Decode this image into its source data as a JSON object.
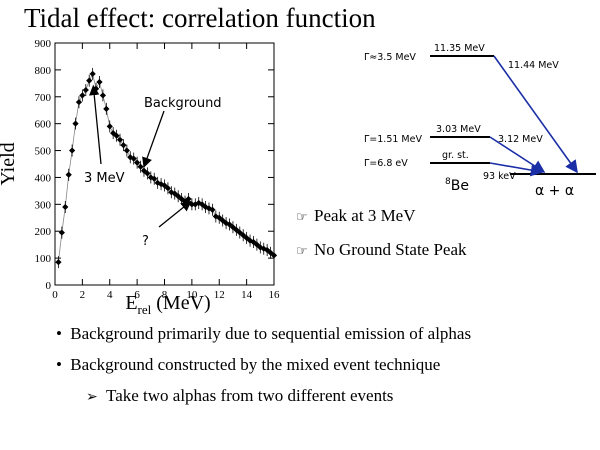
{
  "slide": {
    "title": "Tidal effect: correlation function"
  },
  "chart_data": {
    "type": "scatter",
    "ylabel": "Yield",
    "xlabel_main": "E",
    "xlabel_sub": "rel",
    "xlabel_unit": " (MeV)",
    "xlim": [
      0,
      16
    ],
    "ylim": [
      0,
      900
    ],
    "x_ticks": [
      0,
      2,
      4,
      6,
      8,
      10,
      12,
      14,
      16
    ],
    "y_ticks": [
      0,
      100,
      200,
      300,
      400,
      500,
      600,
      700,
      800,
      900
    ],
    "series": [
      {
        "values": [
          [
            0.25,
            85
          ],
          [
            0.5,
            195
          ],
          [
            0.75,
            290
          ],
          [
            1.0,
            410
          ],
          [
            1.25,
            500
          ],
          [
            1.5,
            600
          ],
          [
            1.75,
            680
          ],
          [
            2.0,
            705
          ],
          [
            2.25,
            725
          ],
          [
            2.5,
            760
          ],
          [
            2.75,
            785
          ],
          [
            3.0,
            730
          ],
          [
            3.25,
            755
          ],
          [
            3.5,
            705
          ],
          [
            3.75,
            655
          ],
          [
            4.0,
            590
          ],
          [
            4.25,
            565
          ],
          [
            4.5,
            555
          ],
          [
            4.75,
            540
          ],
          [
            5.0,
            520
          ],
          [
            5.25,
            500
          ],
          [
            5.5,
            475
          ],
          [
            5.75,
            470
          ],
          [
            6.0,
            455
          ],
          [
            6.25,
            440
          ],
          [
            6.5,
            425
          ],
          [
            6.75,
            415
          ],
          [
            7.0,
            400
          ],
          [
            7.25,
            395
          ],
          [
            7.5,
            380
          ],
          [
            7.75,
            375
          ],
          [
            8.0,
            370
          ],
          [
            8.25,
            360
          ],
          [
            8.5,
            345
          ],
          [
            8.75,
            340
          ],
          [
            9.0,
            330
          ],
          [
            9.25,
            320
          ],
          [
            9.5,
            310
          ],
          [
            9.75,
            320
          ],
          [
            10.0,
            300
          ],
          [
            10.25,
            300
          ],
          [
            10.5,
            305
          ],
          [
            10.75,
            300
          ],
          [
            11.0,
            290
          ],
          [
            11.25,
            285
          ],
          [
            11.5,
            280
          ],
          [
            11.75,
            255
          ],
          [
            12.0,
            250
          ],
          [
            12.25,
            240
          ],
          [
            12.5,
            230
          ],
          [
            12.75,
            225
          ],
          [
            13.0,
            215
          ],
          [
            13.25,
            205
          ],
          [
            13.5,
            195
          ],
          [
            13.75,
            185
          ],
          [
            14.0,
            175
          ],
          [
            14.25,
            165
          ],
          [
            14.5,
            160
          ],
          [
            14.75,
            150
          ],
          [
            15.0,
            140
          ],
          [
            15.25,
            135
          ],
          [
            15.5,
            130
          ],
          [
            15.75,
            120
          ],
          [
            16.0,
            110
          ]
        ]
      }
    ],
    "annotations": [
      {
        "text": "Background",
        "points_to": [
          6.5,
          440
        ]
      },
      {
        "text": "3 MeV",
        "points_to": [
          2.8,
          740
        ]
      },
      {
        "text": "?",
        "points_to": [
          9.9,
          310
        ]
      }
    ],
    "grid": false,
    "legend": "none",
    "colors": {
      "points": "#000000",
      "line": "#888888"
    }
  },
  "level_scheme": {
    "widths": [
      "Γ≈3.5 MeV",
      "Γ=1.51 MeV",
      "Γ=6.8 eV"
    ],
    "levels": [
      "11.35 MeV",
      "3.03 MeV",
      "gr. st."
    ],
    "decays": [
      "11.44 MeV",
      "3.12 MeV",
      "93 keV"
    ],
    "nucleus_mass": "8",
    "nucleus_symbol": "Be",
    "final_state": "α + α",
    "arrow_color": "#1a2ea6"
  },
  "bullets": [
    "Peak at 3 MeV",
    "No Ground State Peak"
  ],
  "bullet_icon": "pointing-hand-icon",
  "notes": [
    "Background primarily due to sequential emission of alphas",
    "Background constructed by the mixed event technique"
  ],
  "subnote": "Take two alphas from two different events",
  "subnote_icon": "arrow-bullet-icon"
}
